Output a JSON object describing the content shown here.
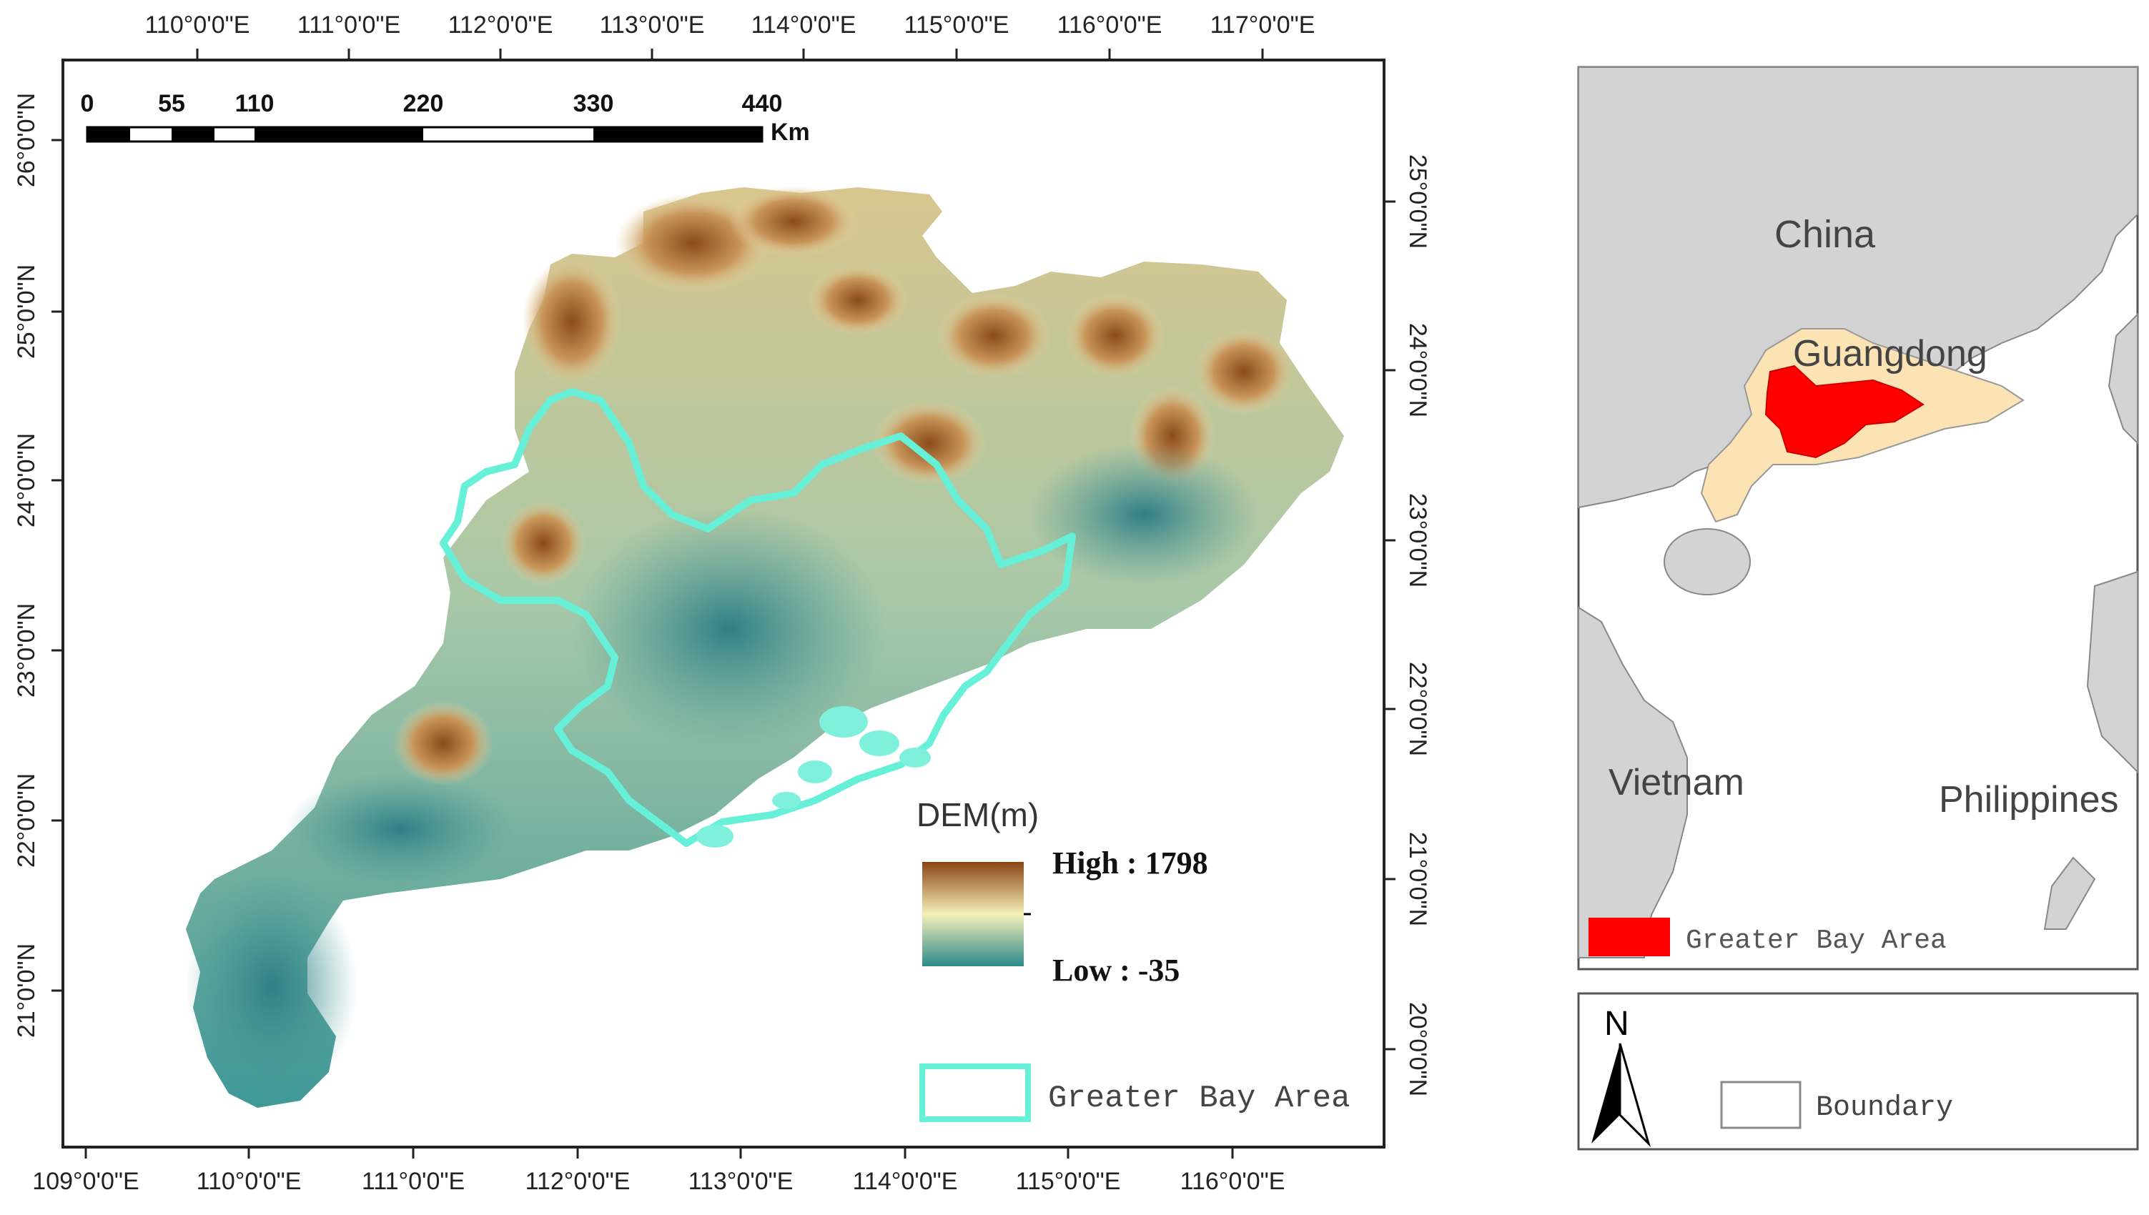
{
  "main_map": {
    "top_lon_labels": [
      "110°0'0\"E",
      "111°0'0\"E",
      "112°0'0\"E",
      "113°0'0\"E",
      "114°0'0\"E",
      "115°0'0\"E",
      "116°0'0\"E",
      "117°0'0\"E"
    ],
    "bottom_lon_labels": [
      "109°0'0\"E",
      "110°0'0\"E",
      "111°0'0\"E",
      "112°0'0\"E",
      "113°0'0\"E",
      "114°0'0\"E",
      "115°0'0\"E",
      "116°0'0\"E"
    ],
    "left_lat_labels": [
      "26°0'0\"N",
      "25°0'0\"N",
      "24°0'0\"N",
      "23°0'0\"N",
      "22°0'0\"N",
      "21°0'0\"N"
    ],
    "right_lat_labels": [
      "25°0'0\"N",
      "24°0'0\"N",
      "23°0'0\"N",
      "22°0'0\"N",
      "21°0'0\"N",
      "20°0'0\"N"
    ],
    "scale_bar": {
      "ticks": [
        "0",
        "55",
        "110",
        "220",
        "330",
        "440"
      ],
      "unit": "Km"
    },
    "dem_legend": {
      "title": "DEM(m)",
      "high_label": "High : 1798",
      "low_label": "Low : -35",
      "high_color": "#8b4513",
      "mid_color": "#f5f0b8",
      "low_color": "#2e8b8b"
    },
    "gba_legend": {
      "label": "Greater Bay Area",
      "color": "#66f0d8"
    }
  },
  "inset_map": {
    "labels": {
      "china": "China",
      "guangdong": "Guangdong",
      "vietnam": "Vietnam",
      "philippines": "Philippines"
    },
    "legend_label": "Greater Bay Area",
    "gba_color": "#ff0000",
    "guangdong_color": "#fbe3b4"
  },
  "legend_box": {
    "north_label": "N",
    "boundary_label": "Boundary"
  }
}
